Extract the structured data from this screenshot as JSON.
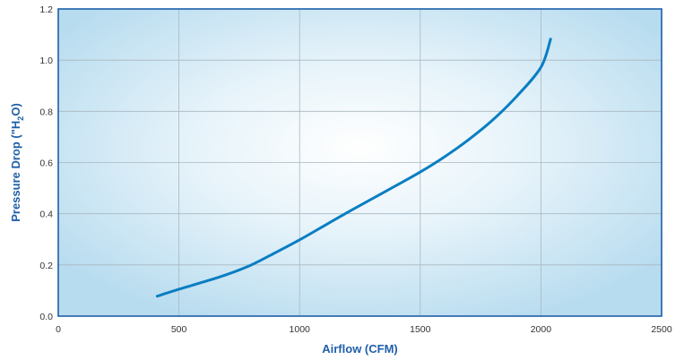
{
  "chart_data": {
    "type": "line",
    "title": "",
    "xlabel": "Airflow (CFM)",
    "ylabel": {
      "prefix": "Pressure Drop (\"H",
      "subscript": "2",
      "suffix": "O)"
    },
    "xlim": [
      0,
      2500
    ],
    "ylim": [
      0,
      1.2
    ],
    "x_ticks": [
      0,
      500,
      1000,
      1500,
      2000,
      2500
    ],
    "x_tick_labels": [
      "0",
      "500",
      "1000",
      "1500",
      "2000",
      "2500"
    ],
    "y_ticks": [
      0,
      0.2,
      0.4,
      0.6,
      0.8,
      1.0,
      1.2
    ],
    "y_tick_labels": [
      "0.0",
      "0.2",
      "0.4",
      "0.6",
      "0.8",
      "1.0",
      "1.2"
    ],
    "grid": true,
    "legend": "none",
    "series": [
      {
        "x": [
          410,
          500,
          600,
          700,
          800,
          900,
          1000,
          1100,
          1200,
          1300,
          1400,
          1500,
          1600,
          1700,
          1800,
          1900,
          2000,
          2040
        ],
        "y": [
          0.078,
          0.105,
          0.133,
          0.163,
          0.2,
          0.248,
          0.298,
          0.352,
          0.406,
          0.458,
          0.51,
          0.563,
          0.622,
          0.689,
          0.766,
          0.859,
          0.972,
          1.082
        ]
      }
    ],
    "colors": {
      "line": "#0a7ec2",
      "axis_title": "#1f5fa8",
      "background_center": "#ffffff",
      "background_edge": "#bfe0f2",
      "grid": "#a9b7c0",
      "frame": "#1c5ea8"
    }
  }
}
